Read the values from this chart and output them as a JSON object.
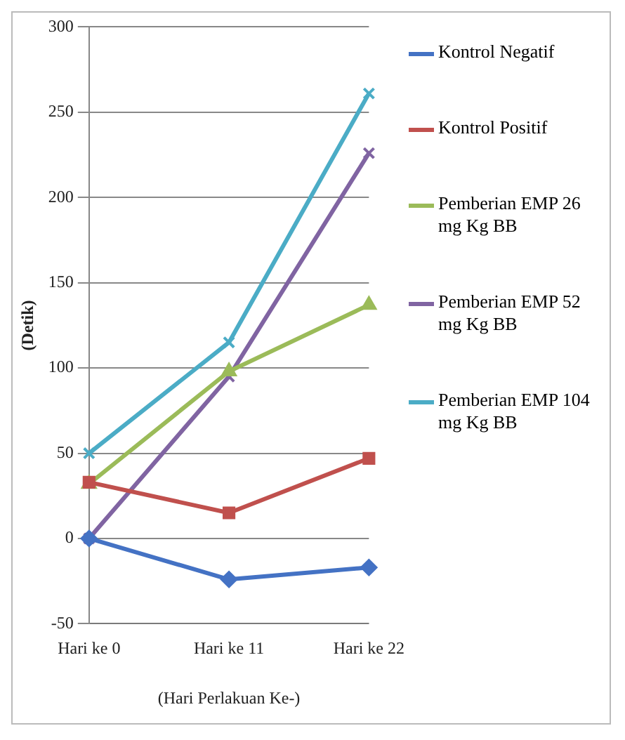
{
  "chart_data": {
    "type": "line",
    "ylabel": "(Detik)",
    "xlabel": "(Hari Perlakuan Ke-)",
    "categories": [
      "Hari ke 0",
      "Hari ke 11",
      "Hari ke 22"
    ],
    "series": [
      {
        "name": "Kontrol Negatif",
        "color": "#4472c4",
        "values": [
          0,
          -24,
          -17
        ],
        "marker": "diamond"
      },
      {
        "name": "Kontrol Positif",
        "color": "#c0504d",
        "values": [
          33,
          15,
          47
        ],
        "marker": "square"
      },
      {
        "name": "Pemberian EMP 26 mg Kg BB",
        "color": "#9bbb59",
        "values": [
          32,
          98,
          137
        ],
        "marker": "triangle"
      },
      {
        "name": "Pemberian EMP 52 mg Kg BB",
        "color": "#8064a2",
        "values": [
          0,
          95,
          226
        ],
        "marker": "cross"
      },
      {
        "name": "Pemberian EMP 104 mg Kg BB",
        "color": "#4bacc6",
        "values": [
          50,
          115,
          261
        ],
        "marker": "cross"
      }
    ],
    "ylim": [
      -50,
      300
    ],
    "yticks": [
      -50,
      0,
      50,
      100,
      150,
      200,
      250,
      300
    ],
    "grid": "y",
    "legend": "right"
  }
}
